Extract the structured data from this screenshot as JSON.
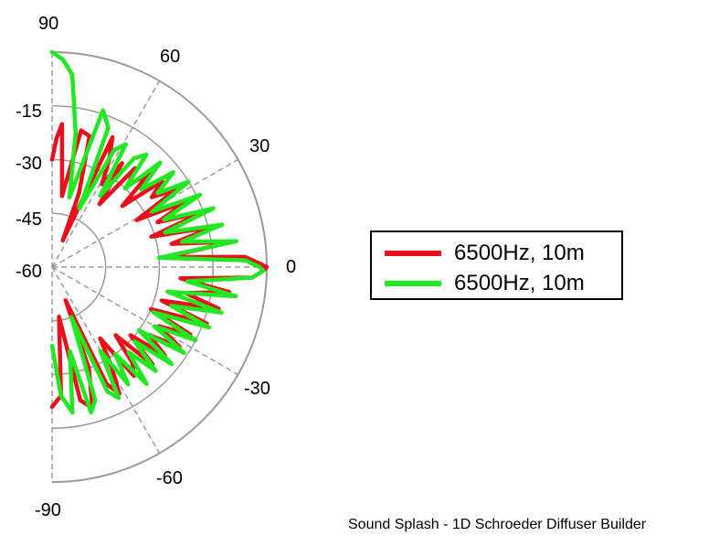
{
  "chart_data": {
    "type": "polar",
    "angular_range": [
      -90,
      90
    ],
    "angle_ticks": [
      "90",
      "60",
      "30",
      "0",
      "-30",
      "-60",
      "-90"
    ],
    "radial_ticks": [
      "-15",
      "-30",
      "-45",
      "-60"
    ],
    "radial_range_db": [
      -60,
      0
    ],
    "grid": true,
    "legend_placement": "right",
    "series": [
      {
        "name": "6500Hz, 10m",
        "color": "#e8111b",
        "points": [
          [
            -90,
            -21
          ],
          [
            -86,
            -24
          ],
          [
            -82,
            -46
          ],
          [
            -78,
            -22
          ],
          [
            -74,
            -19
          ],
          [
            -70,
            -30
          ],
          [
            -68,
            -50
          ],
          [
            -65,
            -24
          ],
          [
            -62,
            -20
          ],
          [
            -59,
            -28
          ],
          [
            -56,
            -36
          ],
          [
            -53,
            -22
          ],
          [
            -50,
            -25
          ],
          [
            -47,
            -34
          ],
          [
            -44,
            -21
          ],
          [
            -41,
            -31
          ],
          [
            -38,
            -20
          ],
          [
            -35,
            -27
          ],
          [
            -32,
            -18
          ],
          [
            -29,
            -26
          ],
          [
            -26,
            -17
          ],
          [
            -23,
            -30
          ],
          [
            -20,
            -14
          ],
          [
            -17,
            -28
          ],
          [
            -14,
            -12
          ],
          [
            -11,
            -22
          ],
          [
            -8,
            -10
          ],
          [
            -5,
            -24
          ],
          [
            -3,
            -4
          ],
          [
            -1,
            -1
          ],
          [
            0,
            0
          ],
          [
            1,
            -2
          ],
          [
            3,
            -6
          ],
          [
            5,
            -28
          ],
          [
            8,
            -9
          ],
          [
            11,
            -26
          ],
          [
            14,
            -13
          ],
          [
            17,
            -31
          ],
          [
            20,
            -15
          ],
          [
            23,
            -28
          ],
          [
            26,
            -18
          ],
          [
            29,
            -33
          ],
          [
            32,
            -19
          ],
          [
            35,
            -26
          ],
          [
            38,
            -21
          ],
          [
            41,
            -34
          ],
          [
            44,
            -22
          ],
          [
            47,
            -29
          ],
          [
            50,
            -24
          ],
          [
            53,
            -38
          ],
          [
            56,
            -25
          ],
          [
            59,
            -33
          ],
          [
            62,
            -26
          ],
          [
            65,
            -20
          ],
          [
            68,
            -52
          ],
          [
            70,
            -38
          ],
          [
            74,
            -22
          ],
          [
            78,
            -21
          ],
          [
            82,
            -40
          ],
          [
            86,
            -20
          ],
          [
            88,
            -24
          ],
          [
            90,
            -30
          ]
        ]
      },
      {
        "name": "6500Hz, 10m",
        "color": "#22e822",
        "points": [
          [
            -90,
            -38
          ],
          [
            -86,
            -24
          ],
          [
            -82,
            -19
          ],
          [
            -78,
            -36
          ],
          [
            -75,
            -18
          ],
          [
            -72,
            -21
          ],
          [
            -69,
            -45
          ],
          [
            -66,
            -22
          ],
          [
            -63,
            -19
          ],
          [
            -60,
            -33
          ],
          [
            -57,
            -21
          ],
          [
            -54,
            -30
          ],
          [
            -51,
            -18
          ],
          [
            -48,
            -28
          ],
          [
            -45,
            -19
          ],
          [
            -42,
            -29
          ],
          [
            -39,
            -17
          ],
          [
            -36,
            -30
          ],
          [
            -33,
            -16
          ],
          [
            -30,
            -27
          ],
          [
            -27,
            -15
          ],
          [
            -24,
            -29
          ],
          [
            -21,
            -13
          ],
          [
            -18,
            -25
          ],
          [
            -15,
            -11
          ],
          [
            -12,
            -27
          ],
          [
            -9,
            -8
          ],
          [
            -6,
            -22
          ],
          [
            -3,
            -4
          ],
          [
            -1,
            -1
          ],
          [
            0,
            -2
          ],
          [
            2,
            -6
          ],
          [
            5,
            -30
          ],
          [
            8,
            -8
          ],
          [
            11,
            -23
          ],
          [
            14,
            -11
          ],
          [
            17,
            -27
          ],
          [
            20,
            -12
          ],
          [
            23,
            -26
          ],
          [
            26,
            -14
          ],
          [
            29,
            -28
          ],
          [
            32,
            -15
          ],
          [
            35,
            -24
          ],
          [
            38,
            -17
          ],
          [
            41,
            -27
          ],
          [
            44,
            -18
          ],
          [
            47,
            -30
          ],
          [
            50,
            -19
          ],
          [
            53,
            -22
          ],
          [
            56,
            -36
          ],
          [
            59,
            -20
          ],
          [
            62,
            -23
          ],
          [
            65,
            -42
          ],
          [
            68,
            -18
          ],
          [
            72,
            -14
          ],
          [
            76,
            -40
          ],
          [
            80,
            -22
          ],
          [
            84,
            -6
          ],
          [
            87,
            -2
          ],
          [
            90,
            0
          ]
        ]
      }
    ],
    "footer": "Sound Splash - 1D Schroeder Diffuser Builder"
  }
}
